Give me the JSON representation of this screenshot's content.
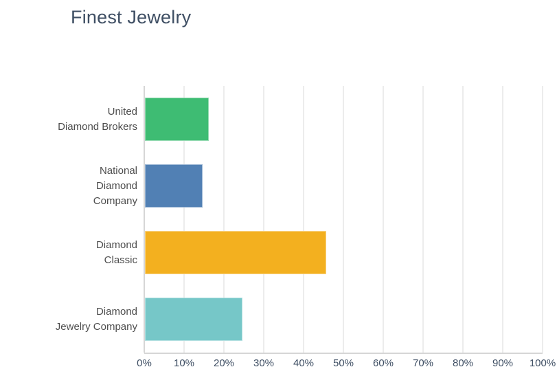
{
  "title": "Finest Jewelry",
  "colors": {
    "title": "#3E4E63",
    "category_label": "#4D4D4D",
    "tick_label": "#3E4E63",
    "gridline": "#ECECEC",
    "axis_line": "#D6D6D6",
    "background": "#FFFFFF"
  },
  "chart_data": {
    "type": "bar",
    "orientation": "horizontal",
    "title": "Finest Jewelry",
    "xlabel": "",
    "ylabel": "",
    "categories": [
      "United Diamond Brokers",
      "National Diamond Company",
      "Diamond Classic",
      "Diamond Jewelry Company"
    ],
    "category_display_lines": [
      [
        "United",
        "Diamond Brokers"
      ],
      [
        "National",
        "Diamond",
        "Company"
      ],
      [
        "Diamond",
        "Classic"
      ],
      [
        "Diamond",
        "Jewelry Company"
      ]
    ],
    "values": [
      16,
      14.5,
      45.5,
      24.5
    ],
    "value_unit": "%",
    "bar_colors": [
      "#3EBC73",
      "#5180B4",
      "#F3B01F",
      "#76C7C8"
    ],
    "x_axis": {
      "min": 0,
      "max": 100,
      "tick_step": 10,
      "tick_labels": [
        "0%",
        "10%",
        "20%",
        "30%",
        "40%",
        "50%",
        "60%",
        "70%",
        "80%",
        "90%",
        "100%"
      ]
    },
    "grid": "vertical",
    "legend": "none"
  }
}
